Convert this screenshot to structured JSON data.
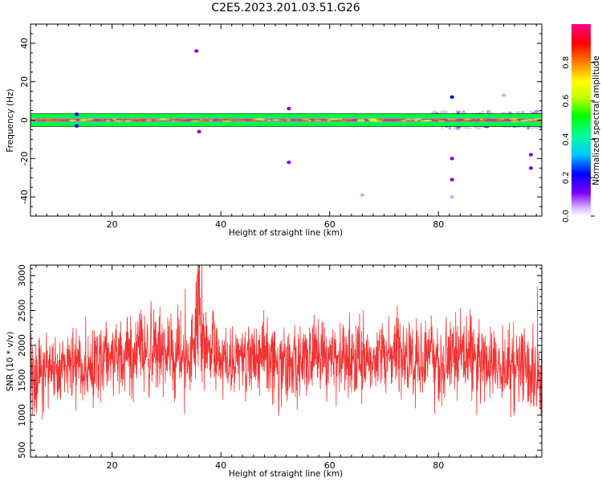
{
  "title": "C2E5.2023.201.03.51.G26",
  "chart_data": [
    {
      "type": "heatmap",
      "xlabel": "Height of straight line (km)",
      "ylabel": "Frequency (Hz)",
      "xlim": [
        5,
        99
      ],
      "ylim": [
        -50,
        50
      ],
      "xticks": [
        20,
        40,
        60,
        80
      ],
      "yticks": [
        40,
        20,
        0,
        -20,
        -40
      ],
      "colorbar": {
        "label": "Normalized spectral amplitude",
        "range": [
          0,
          1
        ],
        "ticks": [
          0.0,
          0.2,
          0.4,
          0.6,
          0.8
        ]
      },
      "band": {
        "frequency": 0,
        "height_range": [
          5,
          99
        ]
      },
      "spots": [
        {
          "x": 35.5,
          "y": 36,
          "amplitude": 0.15
        },
        {
          "x": 36,
          "y": -6,
          "amplitude": 0.2
        },
        {
          "x": 52.5,
          "y": 6,
          "amplitude": 0.2
        },
        {
          "x": 52.5,
          "y": -22,
          "amplitude": 0.2
        },
        {
          "x": 66,
          "y": -39,
          "amplitude": 0.1
        },
        {
          "x": 82.5,
          "y": 12,
          "amplitude": 0.3
        },
        {
          "x": 82.5,
          "y": -31,
          "amplitude": 0.2
        },
        {
          "x": 82.5,
          "y": -40,
          "amplitude": 0.1
        },
        {
          "x": 82.5,
          "y": -20,
          "amplitude": 0.15
        },
        {
          "x": 97,
          "y": -18,
          "amplitude": 0.2
        },
        {
          "x": 97,
          "y": -25,
          "amplitude": 0.15
        },
        {
          "x": 92,
          "y": 13,
          "amplitude": 0.1
        },
        {
          "x": 13.5,
          "y": 3,
          "amplitude": 0.3
        },
        {
          "x": 13.5,
          "y": -3,
          "amplitude": 0.3
        }
      ]
    },
    {
      "type": "line",
      "xlabel": "Height of straight line (km)",
      "ylabel": "SNR (10 * v/v)",
      "xlim": [
        5,
        99
      ],
      "ylim": [
        400,
        3150
      ],
      "xticks": [
        20,
        40,
        60,
        80
      ],
      "yticks": [
        500,
        1000,
        1500,
        2000,
        2500,
        3000
      ],
      "series": [
        {
          "color": "#f03333",
          "x": [
            5,
            7.5,
            10,
            12.5,
            15,
            17.5,
            20,
            22.5,
            25,
            27.5,
            30,
            32.5,
            34,
            35,
            36,
            37,
            38,
            40,
            42.5,
            45,
            47.5,
            50,
            52.5,
            55,
            57.5,
            60,
            62.5,
            65,
            67.5,
            70,
            72.5,
            75,
            77.5,
            80,
            82.5,
            85,
            87.5,
            90,
            92.5,
            95,
            97.5,
            99
          ],
          "mean": [
            1500,
            1600,
            1650,
            1700,
            1700,
            1750,
            1800,
            1850,
            1900,
            1950,
            1900,
            1800,
            1750,
            1900,
            2250,
            2100,
            1950,
            1850,
            1800,
            1750,
            1850,
            1750,
            1700,
            1800,
            1850,
            1750,
            1800,
            1750,
            1800,
            1850,
            1850,
            1800,
            1800,
            1750,
            1850,
            1900,
            1800,
            1700,
            1650,
            1700,
            1700,
            1550
          ],
          "spread": [
            350,
            350,
            350,
            350,
            350,
            350,
            350,
            350,
            380,
            380,
            350,
            380,
            380,
            420,
            450,
            400,
            350,
            330,
            330,
            330,
            330,
            330,
            330,
            330,
            330,
            330,
            330,
            330,
            330,
            330,
            330,
            330,
            330,
            380,
            400,
            400,
            330,
            330,
            330,
            380,
            400,
            380
          ]
        }
      ]
    }
  ]
}
